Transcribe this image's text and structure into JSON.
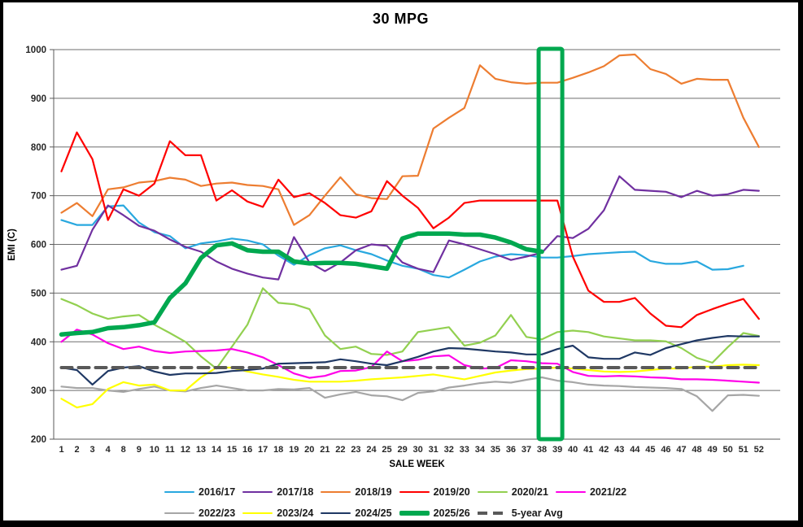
{
  "window": {
    "title": "30 MPG"
  },
  "chart_data": {
    "type": "line",
    "title": "30 MPG",
    "xlabel": "SALE WEEK",
    "ylabel": "EMI (C)",
    "ylim": [
      200,
      1000
    ],
    "yticks": [
      200,
      300,
      400,
      500,
      600,
      700,
      800,
      900,
      1000
    ],
    "grid": "horizontal",
    "legend_position": "bottom",
    "categories": [
      "1",
      "2",
      "3",
      "4",
      "8",
      "9",
      "10",
      "11",
      "12",
      "13",
      "14",
      "15",
      "16",
      "17",
      "18",
      "19",
      "20",
      "21",
      "22",
      "23",
      "24",
      "25",
      "29",
      "30",
      "31",
      "32",
      "33",
      "34",
      "35",
      "36",
      "37",
      "38",
      "39",
      "40",
      "41",
      "42",
      "43",
      "44",
      "45",
      "46",
      "47",
      "48",
      "49",
      "50",
      "51",
      "52"
    ],
    "series": [
      {
        "name": "2016/17",
        "color": "#29A8DF",
        "width": 2.2,
        "values": [
          650,
          640,
          640,
          678,
          680,
          645,
          625,
          617,
          592,
          602,
          606,
          612,
          608,
          600,
          577,
          558,
          578,
          592,
          598,
          588,
          580,
          567,
          556,
          550,
          537,
          532,
          548,
          565,
          575,
          580,
          578,
          573,
          573,
          576,
          580,
          582,
          584,
          585,
          566,
          560,
          560,
          565,
          548,
          549,
          556,
          null
        ]
      },
      {
        "name": "2017/18",
        "color": "#7030A0",
        "width": 2.2,
        "values": [
          548,
          556,
          630,
          680,
          660,
          638,
          628,
          610,
          595,
          585,
          565,
          550,
          540,
          532,
          528,
          615,
          563,
          545,
          563,
          588,
          600,
          597,
          563,
          550,
          543,
          608,
          600,
          590,
          580,
          568,
          575,
          583,
          617,
          613,
          632,
          670,
          740,
          712,
          710,
          708,
          697,
          710,
          700,
          703,
          712,
          710
        ]
      },
      {
        "name": "2018/19",
        "color": "#ED7D31",
        "width": 2.2,
        "values": [
          665,
          685,
          658,
          713,
          717,
          727,
          730,
          737,
          733,
          720,
          725,
          727,
          722,
          720,
          713,
          640,
          660,
          700,
          738,
          703,
          695,
          693,
          740,
          741,
          838,
          860,
          880,
          968,
          940,
          933,
          930,
          932,
          932,
          942,
          953,
          966,
          988,
          990,
          960,
          950,
          930,
          940,
          938,
          938,
          860,
          800
        ]
      },
      {
        "name": "2019/20",
        "color": "#FF0000",
        "width": 2.2,
        "values": [
          750,
          830,
          775,
          650,
          713,
          700,
          725,
          812,
          783,
          783,
          690,
          711,
          688,
          677,
          733,
          697,
          705,
          685,
          660,
          655,
          668,
          730,
          700,
          675,
          633,
          655,
          685,
          690,
          690,
          690,
          690,
          690,
          690,
          575,
          505,
          482,
          482,
          490,
          458,
          433,
          430,
          455,
          467,
          478,
          488,
          447
        ]
      },
      {
        "name": "2020/21",
        "color": "#92D050",
        "width": 2.2,
        "values": [
          488,
          475,
          458,
          447,
          452,
          455,
          435,
          418,
          400,
          370,
          345,
          390,
          435,
          510,
          480,
          477,
          467,
          413,
          385,
          390,
          375,
          373,
          380,
          420,
          425,
          430,
          392,
          398,
          413,
          455,
          410,
          405,
          420,
          423,
          420,
          411,
          407,
          403,
          403,
          401,
          387,
          367,
          357,
          389,
          418,
          412
        ]
      },
      {
        "name": "2021/22",
        "color": "#FF00E8",
        "width": 2.2,
        "values": [
          400,
          425,
          415,
          397,
          385,
          390,
          381,
          377,
          380,
          381,
          382,
          385,
          378,
          368,
          352,
          335,
          326,
          330,
          340,
          341,
          348,
          380,
          360,
          363,
          370,
          372,
          352,
          345,
          346,
          362,
          360,
          356,
          355,
          338,
          330,
          329,
          330,
          329,
          327,
          326,
          323,
          323,
          322,
          320,
          318,
          316
        ]
      },
      {
        "name": "2022/23",
        "color": "#A6A6A6",
        "width": 2.2,
        "values": [
          308,
          305,
          305,
          300,
          297,
          303,
          308,
          300,
          298,
          305,
          310,
          305,
          300,
          300,
          303,
          302,
          305,
          285,
          292,
          297,
          290,
          288,
          280,
          295,
          298,
          306,
          310,
          315,
          318,
          316,
          322,
          327,
          320,
          317,
          312,
          310,
          309,
          307,
          306,
          305,
          303,
          288,
          258,
          290,
          291,
          289
        ]
      },
      {
        "name": "2023/24",
        "color": "#FFFF00",
        "width": 2.2,
        "values": [
          283,
          265,
          272,
          303,
          317,
          310,
          312,
          300,
          300,
          327,
          347,
          347,
          339,
          333,
          328,
          322,
          318,
          318,
          318,
          320,
          323,
          325,
          327,
          330,
          333,
          328,
          323,
          330,
          337,
          341,
          344,
          345,
          347,
          345,
          342,
          339,
          338,
          339,
          342,
          345,
          345,
          349,
          349,
          352,
          353,
          352
        ]
      },
      {
        "name": "2024/25",
        "color": "#1F3864",
        "width": 2.2,
        "values": [
          347,
          342,
          312,
          340,
          347,
          350,
          339,
          332,
          335,
          335,
          336,
          340,
          342,
          345,
          355,
          356,
          357,
          358,
          364,
          360,
          355,
          352,
          360,
          369,
          380,
          387,
          386,
          383,
          380,
          378,
          374,
          374,
          385,
          392,
          368,
          365,
          365,
          378,
          373,
          387,
          395,
          403,
          408,
          412,
          411,
          411
        ]
      },
      {
        "name": "2025/26",
        "color": "#00A84F",
        "width": 5.5,
        "values": [
          415,
          418,
          420,
          428,
          430,
          434,
          440,
          490,
          520,
          572,
          598,
          602,
          588,
          585,
          585,
          565,
          561,
          562,
          562,
          560,
          555,
          550,
          612,
          622,
          622,
          622,
          620,
          620,
          614,
          604,
          590,
          585,
          null,
          null,
          null,
          null,
          null,
          null,
          null,
          null,
          null,
          null,
          null,
          null,
          null,
          null
        ]
      },
      {
        "name": "5-year Avg",
        "color": "#595959",
        "width": 4,
        "dash": [
          13,
          8
        ],
        "constant_value": 347
      }
    ],
    "highlight_box": {
      "color": "#00A84F",
      "from_category": "38",
      "to_category": "39",
      "y_from": 200,
      "y_to": 1000
    }
  }
}
